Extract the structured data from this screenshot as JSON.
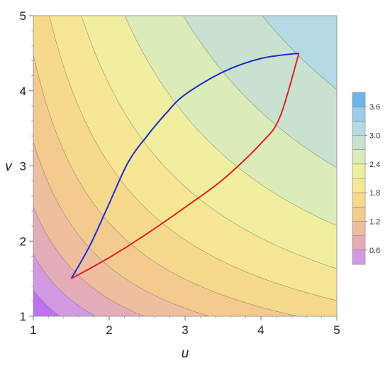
{
  "chart_data": {
    "type": "contour",
    "title": "",
    "xlabel": "u",
    "ylabel": "v",
    "xlim": [
      1,
      5
    ],
    "ylim": [
      1,
      5
    ],
    "x_ticks": [
      "1",
      "2",
      "3",
      "4",
      "5"
    ],
    "y_ticks": [
      "1",
      "2",
      "3",
      "4",
      "5"
    ],
    "field": "log(u*v)",
    "contour_levels": [
      0.3,
      0.6,
      0.9,
      1.2,
      1.5,
      1.8,
      2.1,
      2.4,
      2.7,
      3.0,
      3.3,
      3.6
    ],
    "legend": {
      "placement": "right",
      "range": [
        0.3,
        3.9
      ],
      "tick_labels": [
        "0.6",
        "1.2",
        "1.8",
        "2.4",
        "3.0",
        "3.6"
      ],
      "tick_values": [
        0.6,
        1.2,
        1.8,
        2.4,
        3.0,
        3.6
      ]
    },
    "band_colors": [
      "#bf71ee",
      "#d39ae4",
      "#e4acb8",
      "#efbe9f",
      "#f3cb8f",
      "#f6d98c",
      "#f7e694",
      "#efef9f",
      "#dcecb8",
      "#c9e2d0",
      "#b4dbe1",
      "#9acde8",
      "#6fb4e7"
    ],
    "series": [
      {
        "color": "#1f2ad1",
        "points": [
          [
            1.5,
            1.5
          ],
          [
            1.75,
            1.95
          ],
          [
            2.0,
            2.5
          ],
          [
            2.25,
            3.05
          ],
          [
            2.5,
            3.4
          ],
          [
            2.75,
            3.7
          ],
          [
            3.0,
            3.95
          ],
          [
            3.5,
            4.25
          ],
          [
            4.0,
            4.43
          ],
          [
            4.5,
            4.5
          ]
        ]
      },
      {
        "color": "#e02020",
        "points": [
          [
            1.5,
            1.5
          ],
          [
            2.0,
            1.78
          ],
          [
            2.5,
            2.1
          ],
          [
            3.0,
            2.45
          ],
          [
            3.5,
            2.82
          ],
          [
            4.0,
            3.3
          ],
          [
            4.25,
            3.65
          ],
          [
            4.5,
            4.5
          ]
        ]
      }
    ]
  }
}
